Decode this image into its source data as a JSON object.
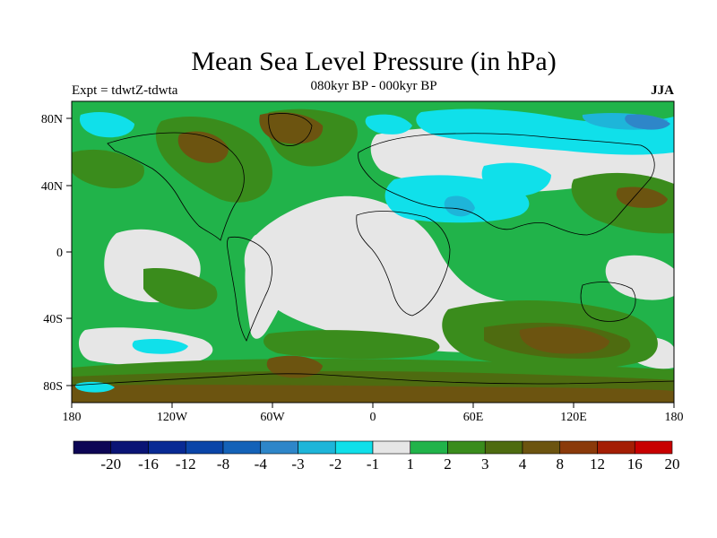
{
  "title": "Mean Sea Level Pressure (in hPa)",
  "subtitle": "080kyr BP - 000kyr BP",
  "experiment": "Expt = tdwtZ-tdwta",
  "season": "JJA",
  "axes": {
    "lat_ticks": [
      "80N",
      "40N",
      "0",
      "40S",
      "80S"
    ],
    "lon_ticks": [
      "180",
      "120W",
      "60W",
      "0",
      "60E",
      "120E",
      "180"
    ]
  },
  "colorbar": {
    "labels": [
      "-20",
      "-16",
      "-12",
      "-8",
      "-4",
      "-3",
      "-2",
      "-1",
      "1",
      "2",
      "3",
      "4",
      "8",
      "12",
      "16",
      "20"
    ],
    "colors": [
      "#0d0655",
      "#0a1475",
      "#082a94",
      "#0a45a8",
      "#1462b8",
      "#2e86c9",
      "#1eb5d9",
      "#10e0ea",
      "#e6e6e6",
      "#21b34a",
      "#3a8c1c",
      "#4e6b10",
      "#6c5410",
      "#8a3a0a",
      "#a41e04",
      "#c80000"
    ]
  },
  "map_colors": {
    "neutral": "#e6e6e6",
    "c_pos1": "#21b34a",
    "c_pos2": "#3a8c1c",
    "c_pos3": "#4e6b10",
    "c_pos4": "#6c5410",
    "c_neg1": "#10e0ea",
    "c_neg2": "#1eb5d9",
    "c_neg3": "#2e86c9",
    "coast": "#000000"
  }
}
